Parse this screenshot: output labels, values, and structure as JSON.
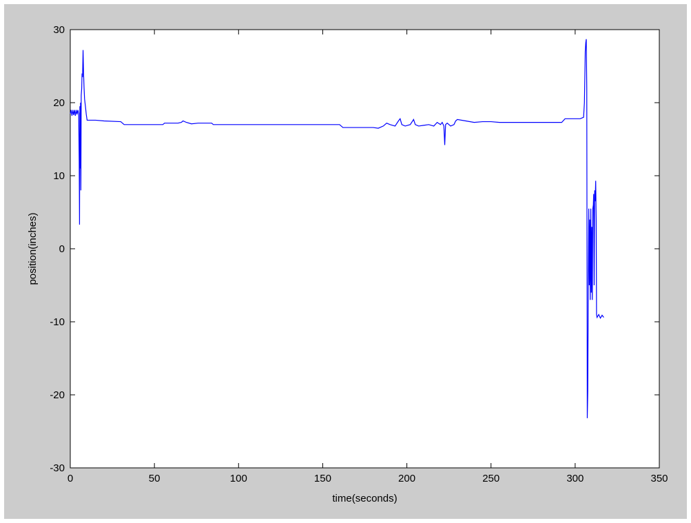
{
  "colors": {
    "figure_background": "#cccccc",
    "axes_background": "#ffffff",
    "line": "#0000ff",
    "axis": "#000000"
  },
  "chart_data": {
    "type": "line",
    "title": "",
    "xlabel": "time(seconds)",
    "ylabel": "position(inches)",
    "xlim": [
      0,
      350
    ],
    "ylim": [
      -30,
      30
    ],
    "xticks": [
      0,
      50,
      100,
      150,
      200,
      250,
      300,
      350
    ],
    "yticks": [
      -30,
      -20,
      -10,
      0,
      10,
      20,
      30
    ],
    "grid": false,
    "legend": "none",
    "series": [
      {
        "color": "#0000ff",
        "points": [
          [
            0,
            18.5
          ],
          [
            0.5,
            19
          ],
          [
            1,
            18.2
          ],
          [
            1.5,
            19
          ],
          [
            2,
            18.3
          ],
          [
            2.5,
            19
          ],
          [
            3,
            18.2
          ],
          [
            3.5,
            19
          ],
          [
            4,
            18.4
          ],
          [
            4.5,
            19
          ],
          [
            5,
            18.5
          ],
          [
            5.3,
            12
          ],
          [
            5.5,
            3.3
          ],
          [
            5.7,
            19.5
          ],
          [
            5.9,
            11
          ],
          [
            6.1,
            20
          ],
          [
            6.3,
            8
          ],
          [
            6.5,
            21
          ],
          [
            6.8,
            22
          ],
          [
            7,
            24
          ],
          [
            7.3,
            23.5
          ],
          [
            7.6,
            27.2
          ],
          [
            7.9,
            24
          ],
          [
            8.2,
            22
          ],
          [
            8.5,
            20.5
          ],
          [
            9,
            19.5
          ],
          [
            9.5,
            18.4
          ],
          [
            10,
            17.6
          ],
          [
            15,
            17.6
          ],
          [
            20,
            17.5
          ],
          [
            30,
            17.4
          ],
          [
            32,
            17.0
          ],
          [
            55,
            17.0
          ],
          [
            56,
            17.2
          ],
          [
            64,
            17.2
          ],
          [
            66,
            17.3
          ],
          [
            67,
            17.5
          ],
          [
            69,
            17.3
          ],
          [
            72,
            17.1
          ],
          [
            76,
            17.2
          ],
          [
            84,
            17.2
          ],
          [
            85,
            17.0
          ],
          [
            100,
            17.0
          ],
          [
            130,
            17.0
          ],
          [
            160,
            17.0
          ],
          [
            162,
            16.6
          ],
          [
            180,
            16.6
          ],
          [
            183,
            16.5
          ],
          [
            186,
            16.8
          ],
          [
            188,
            17.2
          ],
          [
            190,
            17.0
          ],
          [
            193,
            16.8
          ],
          [
            195,
            17.5
          ],
          [
            196,
            17.8
          ],
          [
            197,
            17.0
          ],
          [
            199,
            16.8
          ],
          [
            202,
            17.0
          ],
          [
            204,
            17.7
          ],
          [
            205,
            17.0
          ],
          [
            207,
            16.8
          ],
          [
            210,
            16.9
          ],
          [
            213,
            17.0
          ],
          [
            216,
            16.8
          ],
          [
            218,
            17.3
          ],
          [
            220,
            17.0
          ],
          [
            221,
            17.3
          ],
          [
            222,
            16.8
          ],
          [
            222.5,
            14.2
          ],
          [
            223,
            17.0
          ],
          [
            224,
            17.2
          ],
          [
            226,
            16.8
          ],
          [
            228,
            17.0
          ],
          [
            229,
            17.5
          ],
          [
            230,
            17.7
          ],
          [
            235,
            17.5
          ],
          [
            240,
            17.3
          ],
          [
            245,
            17.4
          ],
          [
            250,
            17.4
          ],
          [
            255,
            17.3
          ],
          [
            260,
            17.3
          ],
          [
            270,
            17.3
          ],
          [
            280,
            17.3
          ],
          [
            292,
            17.3
          ],
          [
            294,
            17.8
          ],
          [
            300,
            17.8
          ],
          [
            303,
            17.8
          ],
          [
            305,
            18.0
          ],
          [
            305.5,
            20
          ],
          [
            306,
            27
          ],
          [
            306.3,
            28.2
          ],
          [
            306.6,
            28.7
          ],
          [
            306.9,
            22
          ],
          [
            307.2,
            -23.2
          ],
          [
            307.5,
            -19.5
          ],
          [
            307.8,
            -5
          ],
          [
            308.1,
            5.5
          ],
          [
            308.4,
            -5
          ],
          [
            308.7,
            4
          ],
          [
            309,
            -7
          ],
          [
            309.3,
            5.5
          ],
          [
            309.6,
            -6
          ],
          [
            309.9,
            3
          ],
          [
            310.2,
            -7
          ],
          [
            310.5,
            5.5
          ],
          [
            310.8,
            6
          ],
          [
            311,
            7.5
          ],
          [
            311.3,
            -5
          ],
          [
            311.6,
            8
          ],
          [
            311.9,
            6.5
          ],
          [
            312.2,
            9.3
          ],
          [
            312.5,
            4
          ],
          [
            312.7,
            -9.0
          ],
          [
            313,
            -9.4
          ],
          [
            314,
            -9.0
          ],
          [
            315,
            -9.5
          ],
          [
            316,
            -9.1
          ],
          [
            317,
            -9.4
          ]
        ]
      }
    ]
  }
}
